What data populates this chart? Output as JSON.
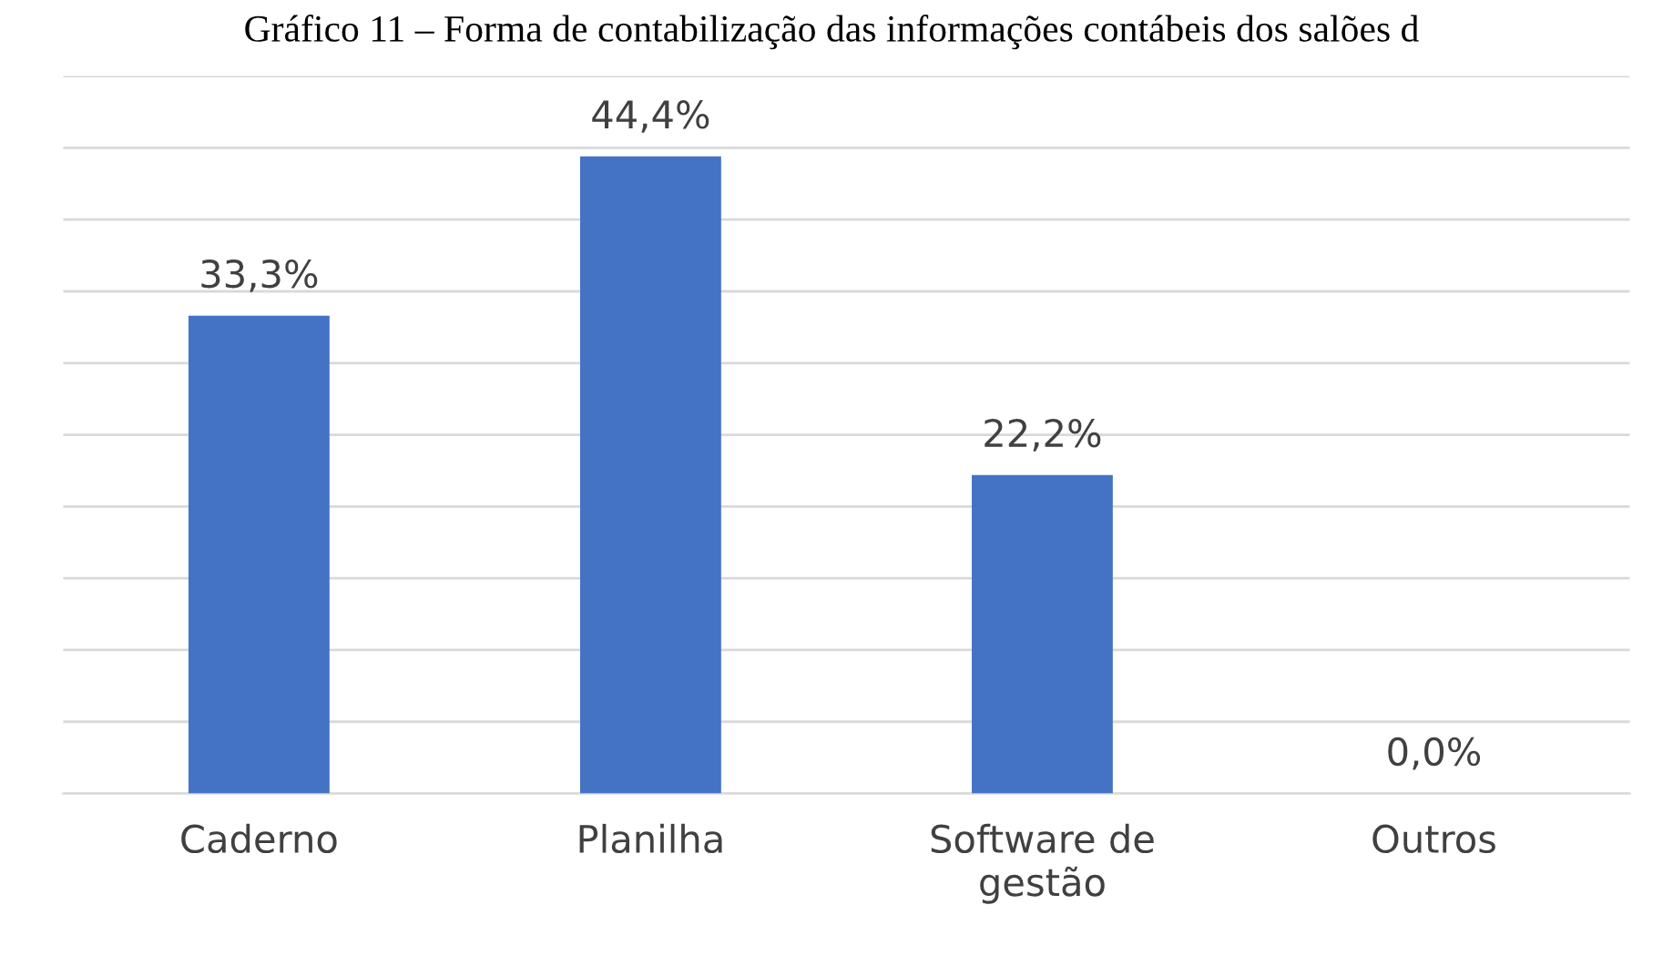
{
  "chart_data": {
    "type": "bar",
    "title": "Gráfico 11 – Forma de contabilização das informações contábeis dos salões d",
    "categories": [
      "Caderno",
      "Planilha",
      "Software de\ngestão",
      "Outros"
    ],
    "values": [
      33.3,
      44.4,
      22.2,
      0.0
    ],
    "value_labels": [
      "33,3%",
      "44,4%",
      "22,2%",
      "0,0%"
    ],
    "color": "#4472c4",
    "ylim": [
      0,
      50
    ],
    "yticks": [
      {
        "value": 0,
        "label": null
      },
      {
        "value": 5,
        "label": null
      },
      {
        "value": 10,
        "label": null
      },
      {
        "value": 15,
        "label": null
      },
      {
        "value": 20,
        "label": null
      },
      {
        "value": 25,
        "label": null
      },
      {
        "value": 30,
        "label": null
      },
      {
        "value": 35,
        "label": null
      },
      {
        "value": 40,
        "label": null
      },
      {
        "value": 45,
        "label": null
      },
      {
        "value": 50,
        "label": null
      }
    ],
    "tick_labels": "x",
    "grid": "y"
  }
}
